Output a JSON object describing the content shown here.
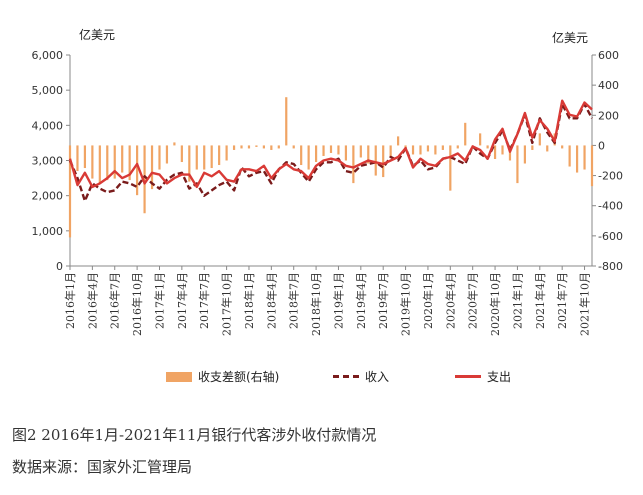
{
  "chart_data": {
    "type": "bar+line",
    "left_unit": "亿美元",
    "right_unit": "亿美元",
    "y_left": {
      "min": 0,
      "max": 6000,
      "step": 1000,
      "ticks": [
        "0",
        "1,000",
        "2,000",
        "3,000",
        "4,000",
        "5,000",
        "6,000"
      ]
    },
    "y_right": {
      "min": -800,
      "max": 600,
      "step": 200,
      "ticks": [
        "-800",
        "-600",
        "-400",
        "-200",
        "0",
        "200",
        "400",
        "600"
      ]
    },
    "x_tick_labels": [
      "2016年1月",
      "2016年4月",
      "2016年7月",
      "2016年10月",
      "2017年1月",
      "2017年4月",
      "2017年7月",
      "2017年10月",
      "2018年1月",
      "2018年4月",
      "2018年7月",
      "2018年10月",
      "2019年1月",
      "2019年4月",
      "2019年7月",
      "2019年10月",
      "2020年1月",
      "2020年4月",
      "2020年7月",
      "2020年10月",
      "2021年1月",
      "2021年4月",
      "2021年7月",
      "2021年10月"
    ],
    "x_tick_every": 3,
    "months": 71,
    "series": [
      {
        "name": "收支差额(右轴)",
        "type": "bar",
        "axis": "right",
        "color": "#f0a464",
        "values": [
          -610,
          -170,
          -150,
          -220,
          -250,
          -230,
          -220,
          -180,
          -230,
          -330,
          -450,
          -290,
          -160,
          -120,
          20,
          -110,
          -240,
          -160,
          -160,
          -150,
          -130,
          -100,
          -30,
          -20,
          -20,
          -10,
          -20,
          -30,
          -20,
          320,
          -20,
          -130,
          -160,
          -110,
          -70,
          -50,
          -60,
          -100,
          -250,
          -80,
          -120,
          -200,
          -210,
          -80,
          60,
          -20,
          -60,
          -60,
          -40,
          -60,
          -30,
          -300,
          -20,
          150,
          -10,
          80,
          -20,
          -90,
          -60,
          -100,
          -250,
          -120,
          -30,
          80,
          -40,
          80,
          -20,
          -140,
          -180,
          -160,
          -270
        ]
      },
      {
        "name": "收入",
        "type": "line",
        "axis": "left",
        "color": "#7a1b1b",
        "dash": true,
        "values": [
          3000,
          2500,
          1850,
          2350,
          2200,
          2100,
          2150,
          2400,
          2350,
          2250,
          2550,
          2350,
          2200,
          2450,
          2600,
          2650,
          2200,
          2350,
          2000,
          2150,
          2300,
          2400,
          2150,
          2800,
          2550,
          2650,
          2700,
          2350,
          2750,
          2950,
          2900,
          2650,
          2400,
          2750,
          2950,
          2950,
          3050,
          2700,
          2650,
          2850,
          2900,
          2950,
          2800,
          3100,
          3000,
          3350,
          2850,
          3000,
          2750,
          2800,
          3050,
          3100,
          3000,
          2900,
          3400,
          3200,
          3050,
          3500,
          3850,
          3300,
          3750,
          4300,
          3500,
          4200,
          3800,
          3500,
          4600,
          4200,
          4200,
          4600,
          4200
        ]
      },
      {
        "name": "支出",
        "type": "line",
        "axis": "left",
        "color": "#d93a36",
        "dash": false,
        "values": [
          3050,
          2300,
          2650,
          2250,
          2350,
          2500,
          2700,
          2500,
          2600,
          2900,
          2350,
          2650,
          2600,
          2350,
          2500,
          2600,
          2600,
          2250,
          2650,
          2550,
          2700,
          2450,
          2400,
          2750,
          2750,
          2700,
          2850,
          2500,
          2750,
          2900,
          2750,
          2700,
          2500,
          2850,
          3000,
          3050,
          3000,
          2850,
          2800,
          2900,
          3000,
          2950,
          2900,
          3000,
          3100,
          3350,
          2800,
          3050,
          2900,
          2850,
          3050,
          3100,
          3200,
          3000,
          3400,
          3300,
          3050,
          3600,
          3900,
          3250,
          3750,
          4350,
          3650,
          4150,
          3900,
          3550,
          4700,
          4300,
          4250,
          4650,
          4450
        ]
      }
    ],
    "legend": [
      "收支差额(右轴)",
      "收入",
      "支出"
    ],
    "legend_position": "bottom",
    "grid": false
  },
  "caption": {
    "figure": "图2 2016年1月-2021年11月银行代客涉外收付款情况",
    "source": "数据来源：国家外汇管理局"
  }
}
